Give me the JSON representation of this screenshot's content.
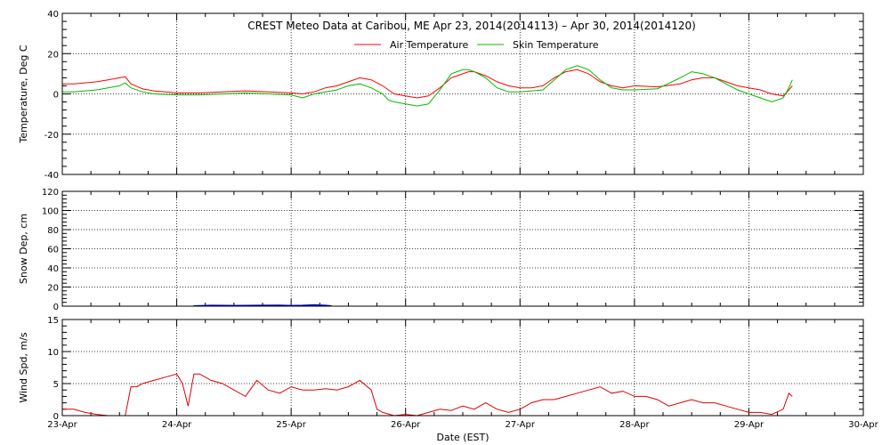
{
  "chart_data": [
    {
      "type": "line",
      "panel": "temperature",
      "title": "CREST Meteo Data at Caribou, ME   Apr 23, 2014(2014113) – Apr 30, 2014(2014120)",
      "ylabel": "Temperature, Deg C",
      "ylim": [
        -40,
        40
      ],
      "yticks": [
        -40,
        -20,
        0,
        20,
        40
      ],
      "x_unit": "days since Apr 23 00:00 EST",
      "xlim": [
        0,
        7
      ],
      "grid": true,
      "legend_position": "top-center",
      "series": [
        {
          "name": "Air Temperature",
          "color": "#ff0000",
          "x": [
            0,
            0.1,
            0.2,
            0.3,
            0.4,
            0.5,
            0.55,
            0.6,
            0.7,
            0.8,
            1.0,
            1.2,
            1.4,
            1.6,
            1.8,
            2.0,
            2.1,
            2.2,
            2.3,
            2.4,
            2.5,
            2.6,
            2.7,
            2.8,
            2.85,
            2.9,
            3.0,
            3.1,
            3.2,
            3.3,
            3.4,
            3.5,
            3.55,
            3.6,
            3.7,
            3.8,
            3.9,
            4.0,
            4.1,
            4.2,
            4.3,
            4.4,
            4.5,
            4.6,
            4.7,
            4.8,
            4.9,
            5.0,
            5.2,
            5.4,
            5.5,
            5.6,
            5.7,
            5.8,
            5.9,
            6.0,
            6.1,
            6.2,
            6.3,
            6.35,
            6.38
          ],
          "values": [
            5,
            5,
            5.5,
            6,
            7,
            8,
            8.5,
            5,
            2.5,
            1.5,
            0.5,
            0.5,
            1,
            1.5,
            1,
            0.5,
            0,
            1,
            3,
            4,
            6,
            8,
            7,
            4,
            2,
            0,
            -1,
            -2,
            -1,
            3,
            8,
            10,
            11,
            11,
            9,
            6,
            4,
            3,
            3,
            4,
            8,
            11,
            12,
            10,
            6,
            4,
            3,
            4,
            3.5,
            5,
            7,
            8,
            8,
            6,
            4,
            3,
            2,
            0,
            -1,
            2,
            4
          ]
        },
        {
          "name": "Skin Temperature",
          "color": "#00bb00",
          "x": [
            0,
            0.1,
            0.2,
            0.3,
            0.4,
            0.5,
            0.55,
            0.6,
            0.7,
            0.8,
            1.0,
            1.2,
            1.4,
            1.6,
            1.8,
            2.0,
            2.1,
            2.2,
            2.3,
            2.4,
            2.5,
            2.6,
            2.7,
            2.8,
            2.85,
            2.9,
            3.0,
            3.1,
            3.2,
            3.3,
            3.4,
            3.5,
            3.55,
            3.6,
            3.7,
            3.8,
            3.9,
            4.0,
            4.1,
            4.2,
            4.3,
            4.4,
            4.5,
            4.6,
            4.7,
            4.8,
            4.9,
            5.0,
            5.2,
            5.4,
            5.5,
            5.6,
            5.7,
            5.8,
            5.9,
            6.0,
            6.1,
            6.2,
            6.3,
            6.35,
            6.38
          ],
          "values": [
            1,
            1,
            1.5,
            2,
            3,
            4,
            5.5,
            3,
            1,
            0,
            -0.5,
            -0.5,
            0,
            0.5,
            0,
            -0.5,
            -2,
            0,
            1,
            2,
            4,
            5,
            3,
            0,
            -3,
            -4,
            -5,
            -6,
            -5,
            2,
            10,
            12,
            12,
            11,
            8,
            3,
            1,
            1,
            1.5,
            2,
            7,
            12,
            14,
            12,
            7,
            3,
            2,
            2,
            2.5,
            8,
            11,
            10,
            8,
            5,
            2,
            0,
            -2,
            -4,
            -2,
            3,
            7
          ]
        }
      ]
    },
    {
      "type": "area",
      "panel": "snow_depth",
      "ylabel": "Snow Dep, cm",
      "ylim": [
        0,
        120
      ],
      "yticks": [
        0,
        20,
        40,
        60,
        80,
        100,
        120
      ],
      "x_unit": "days since Apr 23 00:00 EST",
      "xlim": [
        0,
        7
      ],
      "grid": true,
      "series": [
        {
          "color": "#0000cc",
          "x": [
            1.15,
            1.3,
            1.5,
            1.7,
            1.9,
            2.0,
            2.1,
            2.2,
            2.3,
            2.35
          ],
          "values": [
            0.5,
            1,
            0.8,
            1,
            1.2,
            0.8,
            1,
            1.5,
            1,
            0.5
          ]
        }
      ]
    },
    {
      "type": "line",
      "panel": "wind_speed",
      "ylabel": "Wind Spd, m/s",
      "xlabel": "Date (EST)",
      "ylim": [
        0,
        15
      ],
      "yticks": [
        0,
        5,
        10,
        15
      ],
      "x_unit": "days since Apr 23 00:00 EST",
      "xlim": [
        0,
        7
      ],
      "xticks": [
        0,
        1,
        2,
        3,
        4,
        5,
        6,
        7
      ],
      "xtick_labels": [
        "23-Apr",
        "24-Apr",
        "25-Apr",
        "26-Apr",
        "27-Apr",
        "28-Apr",
        "29-Apr",
        "30-Apr"
      ],
      "grid": true,
      "series": [
        {
          "color": "#dd0000",
          "x": [
            0,
            0.1,
            0.2,
            0.3,
            0.4,
            0.5,
            0.55,
            0.6,
            0.65,
            0.7,
            0.8,
            0.9,
            1.0,
            1.05,
            1.1,
            1.15,
            1.2,
            1.25,
            1.3,
            1.4,
            1.5,
            1.6,
            1.7,
            1.8,
            1.9,
            2.0,
            2.1,
            2.2,
            2.3,
            2.4,
            2.5,
            2.6,
            2.7,
            2.75,
            2.8,
            2.9,
            3.0,
            3.1,
            3.2,
            3.3,
            3.4,
            3.5,
            3.6,
            3.7,
            3.8,
            3.9,
            4.0,
            4.1,
            4.2,
            4.3,
            4.4,
            4.5,
            4.6,
            4.7,
            4.8,
            4.9,
            5.0,
            5.1,
            5.2,
            5.3,
            5.4,
            5.5,
            5.6,
            5.7,
            5.8,
            5.9,
            6.0,
            6.1,
            6.2,
            6.3,
            6.35,
            6.38
          ],
          "values": [
            1,
            1,
            0.5,
            0.2,
            0,
            0,
            0,
            4.5,
            4.5,
            5,
            5.5,
            6,
            6.5,
            5,
            1.5,
            6.5,
            6.5,
            6,
            5.5,
            5,
            4,
            3,
            5.5,
            4,
            3.5,
            4.5,
            4,
            4,
            4.2,
            4,
            4.5,
            5.5,
            4,
            1,
            0.5,
            0,
            0.2,
            0,
            0.5,
            1,
            0.8,
            1.5,
            1,
            2,
            1,
            0.5,
            1,
            2,
            2.5,
            2.5,
            3,
            3.5,
            4,
            4.5,
            3.5,
            3.8,
            3,
            3,
            2.5,
            1.5,
            2,
            2.5,
            2,
            2,
            1.5,
            1,
            0.5,
            0.5,
            0.2,
            1,
            3.5,
            3
          ]
        }
      ]
    }
  ]
}
